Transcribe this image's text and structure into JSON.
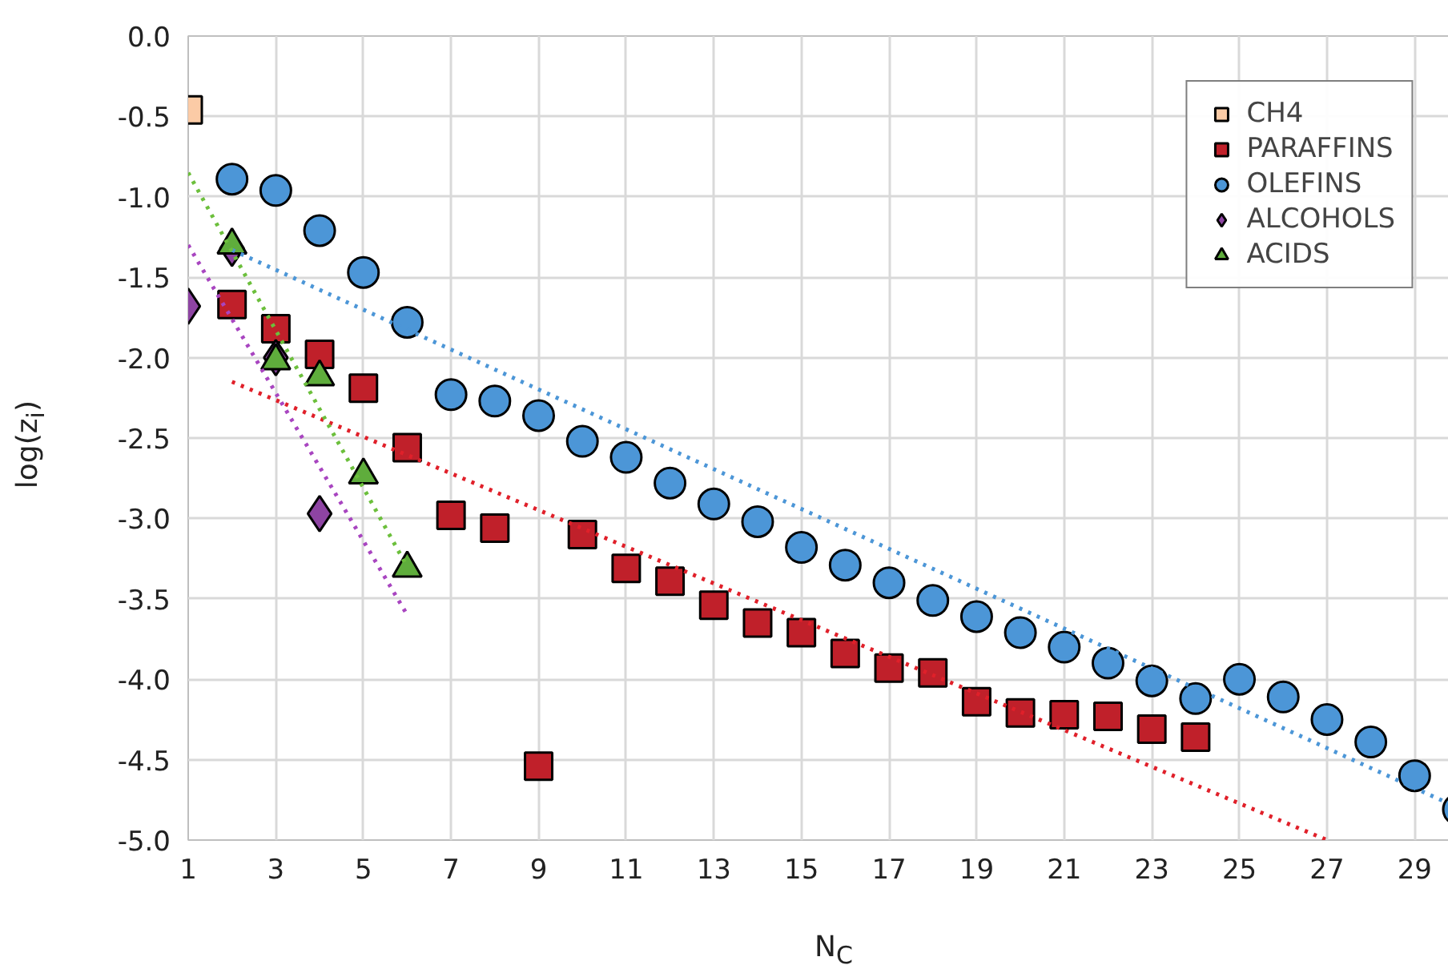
{
  "chart_data": {
    "type": "scatter",
    "xlabel": "N$_{C}$",
    "ylabel": "log(z$_{i}$)",
    "xlim": [
      1,
      30
    ],
    "xticks": [
      1,
      3,
      5,
      7,
      9,
      11,
      13,
      15,
      17,
      19,
      21,
      23,
      25,
      27,
      29
    ],
    "ylim": [
      -5,
      0
    ],
    "yticks": [
      {
        "value": -5,
        "label": "-5.0"
      },
      {
        "value": -4.5,
        "label": "-4.5"
      },
      {
        "value": -4,
        "label": "-4.0"
      },
      {
        "value": -3.5,
        "label": "-3.5"
      },
      {
        "value": -3,
        "label": "-3.0"
      },
      {
        "value": -2.5,
        "label": "-2.5"
      },
      {
        "value": -2,
        "label": "-2.0"
      },
      {
        "value": -1.5,
        "label": "-1.5"
      },
      {
        "value": -1,
        "label": "-1.0"
      },
      {
        "value": -0.5,
        "label": "-0.5"
      },
      {
        "value": 0,
        "label": "0.0"
      }
    ],
    "grid": true,
    "legend": "top right",
    "series": [
      {
        "name": "CH4",
        "color": "#fbcba6",
        "marker": "square",
        "x": [
          1
        ],
        "values": [
          -0.46
        ]
      },
      {
        "name": "PARAFFINS",
        "color": "#c0202a",
        "marker": "square",
        "x": [
          2,
          3,
          4,
          5,
          6,
          7,
          8,
          9,
          10,
          11,
          12,
          13,
          14,
          15,
          16,
          17,
          18,
          19,
          20,
          21,
          22,
          23,
          24
        ],
        "values": [
          -1.67,
          -1.82,
          -1.98,
          -2.19,
          -2.56,
          -2.98,
          -3.06,
          -4.54,
          -3.1,
          -3.31,
          -3.39,
          -3.54,
          -3.65,
          -3.71,
          -3.84,
          -3.93,
          -3.96,
          -4.14,
          -4.21,
          -4.22,
          -4.23,
          -4.31,
          -4.36
        ]
      },
      {
        "name": "OLEFINS",
        "color": "#4c96d7",
        "marker": "circle",
        "x": [
          2,
          3,
          4,
          5,
          6,
          7,
          8,
          9,
          10,
          11,
          12,
          13,
          14,
          15,
          16,
          17,
          18,
          19,
          20,
          21,
          22,
          23,
          24,
          25,
          26,
          27,
          28,
          29,
          30
        ],
        "values": [
          -0.89,
          -0.96,
          -1.21,
          -1.47,
          -1.78,
          -2.23,
          -2.27,
          -2.36,
          -2.52,
          -2.62,
          -2.78,
          -2.91,
          -3.02,
          -3.18,
          -3.29,
          -3.4,
          -3.51,
          -3.61,
          -3.71,
          -3.8,
          -3.9,
          -4.01,
          -4.12,
          -4.0,
          -4.11,
          -4.25,
          -4.39,
          -4.6,
          -4.81
        ]
      },
      {
        "name": "ALCOHOLS",
        "color": "#8e44a3",
        "marker": "diamond",
        "x": [
          1,
          2,
          3,
          4
        ],
        "values": [
          -1.68,
          -1.32,
          -2.0,
          -2.97
        ]
      },
      {
        "name": "ACIDS",
        "color": "#5fad3c",
        "marker": "triangle",
        "x": [
          2,
          3,
          4,
          5,
          6
        ],
        "values": [
          -1.3,
          -2.02,
          -2.12,
          -2.73,
          -3.31
        ]
      },
      {
        "type": "line",
        "line_style": "dotted",
        "color": "#4c96d7",
        "x": [
          2,
          30
        ],
        "values": [
          -1.33,
          -4.8
        ]
      },
      {
        "type": "line",
        "line_style": "dotted",
        "color": "#e0202a",
        "x": [
          2,
          27
        ],
        "values": [
          -2.15,
          -5.0
        ]
      },
      {
        "type": "line",
        "line_style": "dotted",
        "color": "#a845c0",
        "x": [
          1,
          6
        ],
        "values": [
          -1.3,
          -3.6
        ]
      },
      {
        "type": "line",
        "line_style": "dotted",
        "color": "#6cbf3c",
        "x": [
          1,
          6
        ],
        "values": [
          -0.85,
          -3.3
        ]
      }
    ]
  }
}
